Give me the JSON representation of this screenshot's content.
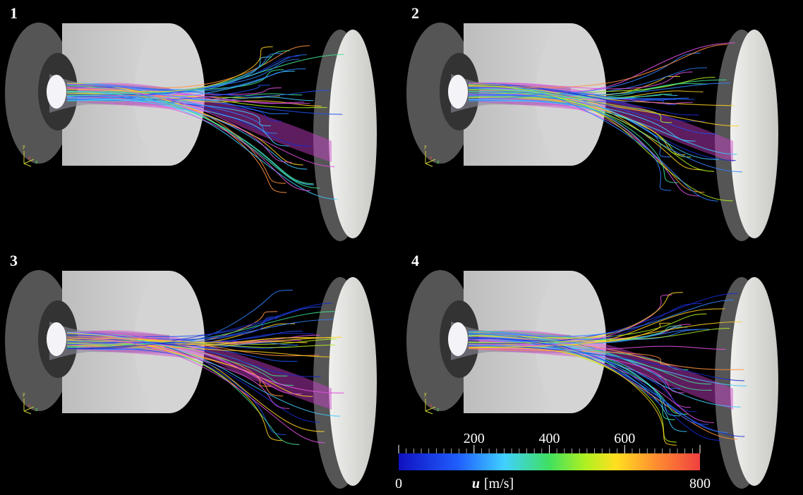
{
  "panels": [
    {
      "label": "1"
    },
    {
      "label": "2"
    },
    {
      "label": "3"
    },
    {
      "label": "4"
    }
  ],
  "axis_triad": [
    "y",
    "x",
    "z"
  ],
  "colorbar": {
    "symbol": "u",
    "unit": "[m/s]",
    "lim": [
      0,
      800
    ],
    "ticks": [
      0,
      200,
      400,
      600,
      800
    ]
  }
}
